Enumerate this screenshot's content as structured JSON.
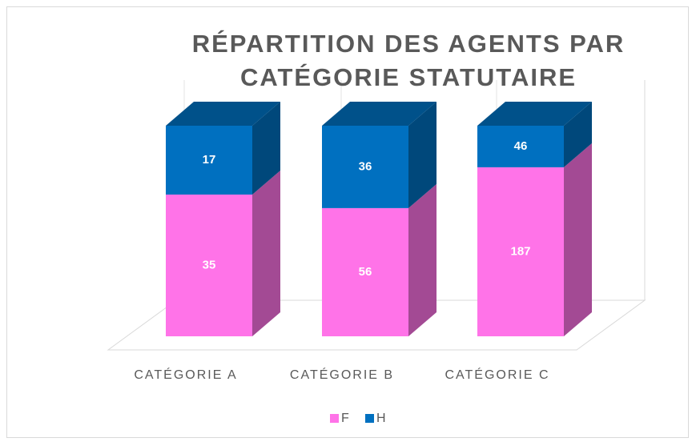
{
  "chart_data": {
    "type": "bar",
    "stacking": "percent",
    "title": "RÉPARTITION DES AGENTS PAR CATÉGORIE STATUTAIRE",
    "categories": [
      "CATÉGORIE A",
      "CATÉGORIE B",
      "CATÉGORIE C"
    ],
    "series": [
      {
        "name": "F",
        "color": "#ff73e8",
        "values": [
          35,
          56,
          187
        ]
      },
      {
        "name": "H",
        "color": "#0070c0",
        "values": [
          17,
          36,
          46
        ]
      }
    ],
    "legend": "bottom"
  }
}
